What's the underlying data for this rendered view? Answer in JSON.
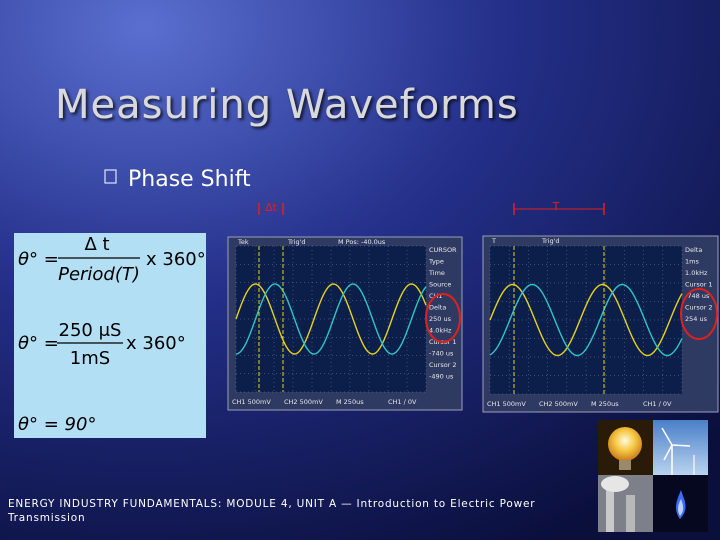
{
  "title": "Measuring Waveforms",
  "bullet": "Phase Shift",
  "formula": {
    "line1": {
      "lhs": "θ° =",
      "numerator": "Δ t",
      "denominator": "Period(T)",
      "factor": "x 360°"
    },
    "line2": {
      "lhs": "θ° =",
      "numerator": "250 μS",
      "denominator": "1mS",
      "factor": "x 360°"
    },
    "result": "θ° = 90°"
  },
  "annotations": {
    "delta_t": "Δt",
    "period": "T"
  },
  "scopes": [
    {
      "header": [
        "Tek",
        "Trig'd",
        "M Pos: -40.0us"
      ],
      "menu": [
        "CURSOR",
        "Type",
        "Time",
        "Source",
        "CH1",
        "Delta",
        "250 us",
        "4.0kHz",
        "Cursor 1",
        "-740 us",
        "Cursor 2",
        "-490 us"
      ],
      "footer": [
        "CH1 500mV",
        "CH2 500mV",
        "M 250us",
        "CH1 ∕ 0V"
      ]
    },
    {
      "header": [
        "T",
        "Trig'd"
      ],
      "menu": [
        "Delta",
        "1ms",
        "1.0kHz",
        "Cursor 1",
        "-748 us",
        "Cursor 2",
        "254 us"
      ],
      "footer": [
        "CH1 500mV",
        "CH2 500mV",
        "M 250us",
        "CH1 ∕ 0V"
      ]
    }
  ],
  "footer": [
    "ENERGY INDUSTRY FUNDAMENTALS: MODULE 4, UNIT A — Introduction to Electric Power",
    "Transmission"
  ]
}
